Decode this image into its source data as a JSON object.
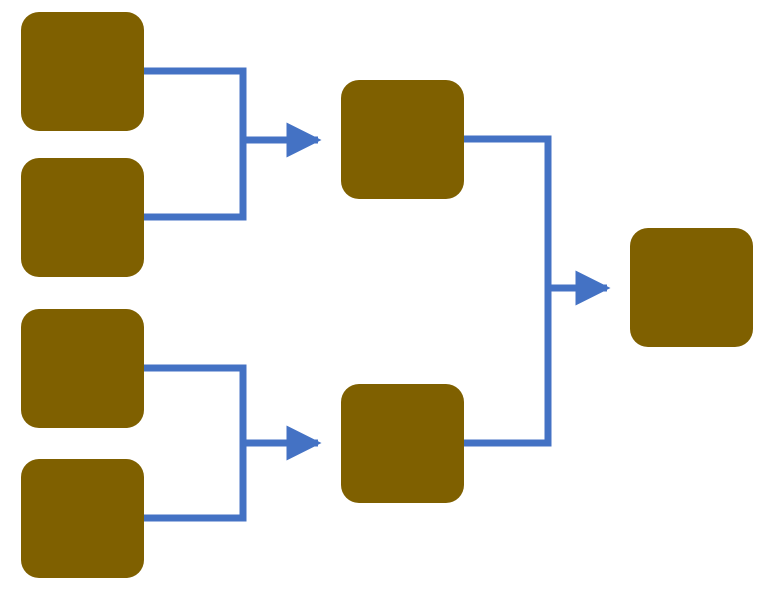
{
  "diagram": {
    "type": "bracket-tree",
    "colors": {
      "node_fill": "#7F6000",
      "connector": "#4472C4",
      "background": "#FFFFFF"
    },
    "nodes": [
      {
        "id": "round1-node-1",
        "round": 1,
        "label": ""
      },
      {
        "id": "round1-node-2",
        "round": 1,
        "label": ""
      },
      {
        "id": "round1-node-3",
        "round": 1,
        "label": ""
      },
      {
        "id": "round1-node-4",
        "round": 1,
        "label": ""
      },
      {
        "id": "round2-node-1",
        "round": 2,
        "label": ""
      },
      {
        "id": "round2-node-2",
        "round": 2,
        "label": ""
      },
      {
        "id": "final-node",
        "round": 3,
        "label": ""
      }
    ],
    "connections": [
      {
        "from": [
          "round1-node-1",
          "round1-node-2"
        ],
        "to": "round2-node-1"
      },
      {
        "from": [
          "round1-node-3",
          "round1-node-4"
        ],
        "to": "round2-node-2"
      },
      {
        "from": [
          "round2-node-1",
          "round2-node-2"
        ],
        "to": "final-node"
      }
    ]
  }
}
